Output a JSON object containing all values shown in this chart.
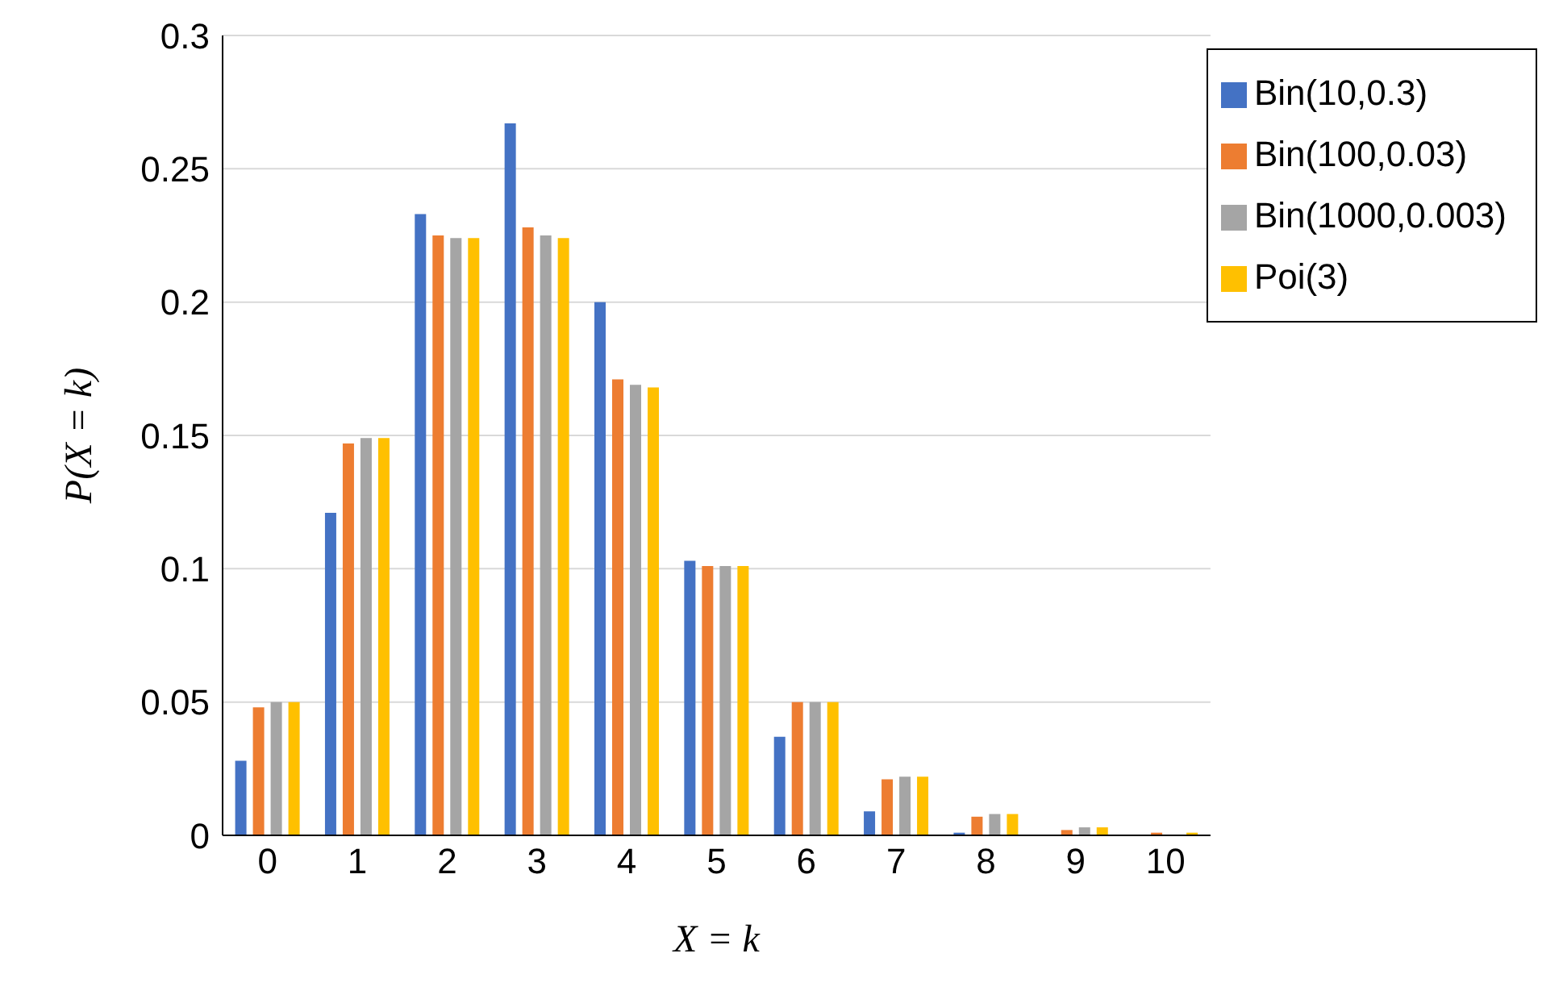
{
  "chart_data": {
    "type": "bar",
    "xlabel": "X = k",
    "ylabel": "P(X = k)",
    "categories": [
      "0",
      "1",
      "2",
      "3",
      "4",
      "5",
      "6",
      "7",
      "8",
      "9",
      "10"
    ],
    "series": [
      {
        "name": "Bin(10,0.3)",
        "color": "#4472c4",
        "values": [
          0.028,
          0.121,
          0.233,
          0.267,
          0.2,
          0.103,
          0.037,
          0.009,
          0.001,
          0.0,
          0.0
        ]
      },
      {
        "name": "Bin(100,0.03)",
        "color": "#ed7d31",
        "values": [
          0.048,
          0.147,
          0.225,
          0.228,
          0.171,
          0.101,
          0.05,
          0.021,
          0.007,
          0.002,
          0.001
        ]
      },
      {
        "name": "Bin(1000,0.003)",
        "color": "#a5a5a5",
        "values": [
          0.05,
          0.149,
          0.224,
          0.225,
          0.169,
          0.101,
          0.05,
          0.022,
          0.008,
          0.003,
          null
        ]
      },
      {
        "name": "Poi(3)",
        "color": "#ffc000",
        "values": [
          0.05,
          0.149,
          0.224,
          0.224,
          0.168,
          0.101,
          0.05,
          0.022,
          0.008,
          0.003,
          0.001
        ]
      }
    ],
    "ylim": [
      0,
      0.3
    ],
    "yticks": [
      0,
      0.05,
      0.1,
      0.15,
      0.2,
      0.25,
      0.3
    ],
    "grid": "y",
    "legend": "top right"
  }
}
